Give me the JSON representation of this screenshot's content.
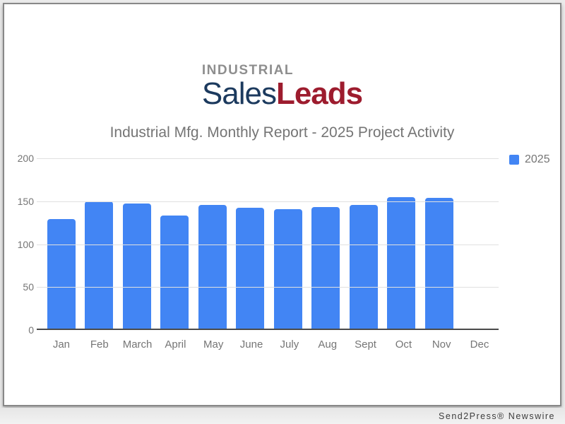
{
  "logo": {
    "top": "INDUSTRIAL",
    "sales": "Sales",
    "leads": "Leads",
    "top_color": "#8e8e8e",
    "sales_color": "#1c3a5e",
    "leads_color": "#9d1c2e"
  },
  "title": "Industrial Mfg. Monthly Report - 2025 Project Activity",
  "legend": {
    "label": "2025",
    "color": "#4285F4"
  },
  "footer": {
    "credit": "Send2Press® Newswire"
  },
  "chart_data": {
    "type": "bar",
    "title": "Industrial Mfg. Monthly Report - 2025 Project Activity",
    "categories": [
      "Jan",
      "Feb",
      "March",
      "April",
      "May",
      "June",
      "July",
      "Aug",
      "Sept",
      "Oct",
      "Nov",
      "Dec"
    ],
    "series": [
      {
        "name": "2025",
        "color": "#4285F4",
        "values": [
          129,
          150,
          147,
          133,
          146,
          142,
          141,
          143,
          146,
          155,
          154,
          null
        ]
      }
    ],
    "xlabel": "",
    "ylabel": "",
    "ylim": [
      0,
      200
    ],
    "yticks": [
      0,
      50,
      100,
      150,
      200
    ],
    "grid": true,
    "legend_position": "top-right",
    "bar_color": "#4285F4",
    "grid_color": "#e0e0e0",
    "axis_color": "#4a4a4a",
    "label_color": "#757575"
  }
}
